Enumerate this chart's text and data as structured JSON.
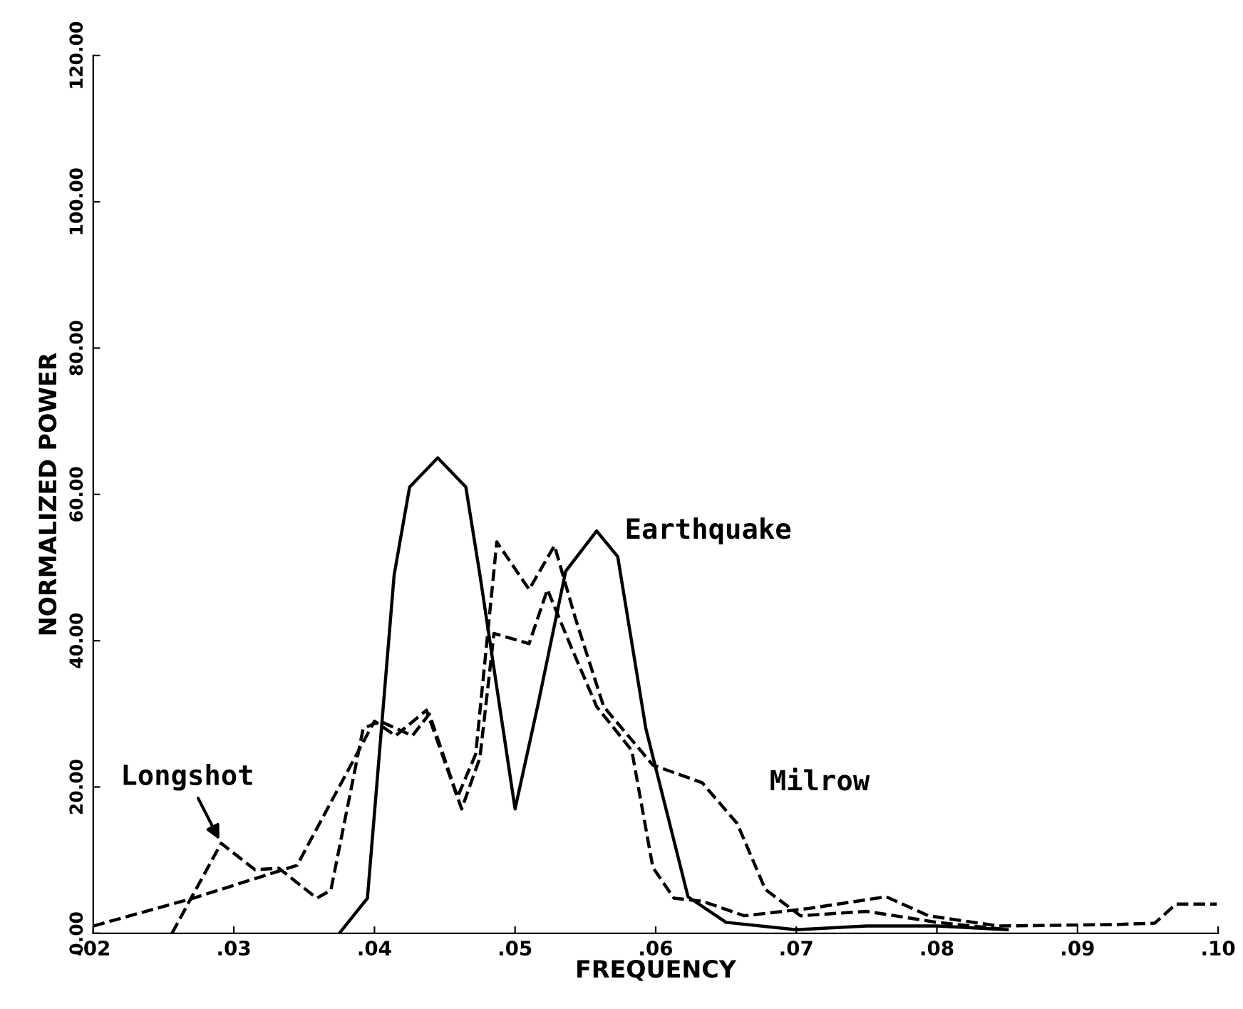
{
  "chart_data": {
    "type": "line",
    "xlabel": "FREQUENCY",
    "ylabel": "NORMALIZED POWER",
    "xlim": [
      0.02,
      0.1
    ],
    "ylim": [
      0,
      120
    ],
    "xticks": [
      {
        "value": 0.02,
        "label": ".02"
      },
      {
        "value": 0.03,
        "label": ".03"
      },
      {
        "value": 0.04,
        "label": ".04"
      },
      {
        "value": 0.05,
        "label": ".05"
      },
      {
        "value": 0.06,
        "label": ".06"
      },
      {
        "value": 0.07,
        "label": ".07"
      },
      {
        "value": 0.08,
        "label": ".08"
      },
      {
        "value": 0.09,
        "label": ".09"
      },
      {
        "value": 0.1,
        "label": ".10"
      }
    ],
    "yticks": [
      {
        "value": 0,
        "label": "0.00"
      },
      {
        "value": 20,
        "label": "20.00"
      },
      {
        "value": 40,
        "label": "40.00"
      },
      {
        "value": 60,
        "label": "60.00"
      },
      {
        "value": 80,
        "label": "80.00"
      },
      {
        "value": 100,
        "label": "100.00"
      },
      {
        "value": 120,
        "label": "120.00"
      }
    ],
    "grid": false,
    "series": [
      {
        "name": "Earthquake",
        "color": "#000000",
        "line_style": "solid",
        "x": [
          0.0375,
          0.0395,
          0.0414,
          0.0425,
          0.0445,
          0.0465,
          0.0475,
          0.05,
          0.0516,
          0.0536,
          0.0558,
          0.0573,
          0.0593,
          0.0623,
          0.065,
          0.07,
          0.075,
          0.08,
          0.085
        ],
        "values": [
          0,
          4.8,
          49,
          61,
          65,
          61,
          49,
          17,
          31,
          49.5,
          55,
          51.5,
          28,
          5,
          1.5,
          0.5,
          1,
          1,
          0.5
        ]
      },
      {
        "name": "Longshot",
        "color": "#000000",
        "line_style": "dashed",
        "x": [
          0.0256,
          0.0271,
          0.0291,
          0.0315,
          0.0332,
          0.0359,
          0.0369,
          0.0392,
          0.0404,
          0.0427,
          0.0439,
          0.0462,
          0.0475,
          0.0485,
          0.051,
          0.0523,
          0.0538,
          0.0558,
          0.0583,
          0.0598,
          0.0613,
          0.0633,
          0.0663,
          0.0709,
          0.0764,
          0.0794,
          0.0844,
          0.0927,
          0.0955,
          0.097,
          0.0999
        ],
        "values": [
          0,
          5.3,
          12.3,
          8.7,
          8.9,
          4.8,
          5.9,
          28,
          29,
          27,
          30,
          17,
          24,
          41,
          39.6,
          47,
          40,
          31,
          25,
          9,
          4.8,
          4.4,
          2.4,
          3.4,
          5,
          2.4,
          1,
          1.2,
          1.4,
          4,
          4
        ]
      },
      {
        "name": "Milrow",
        "color": "#000000",
        "line_style": "dashed",
        "x": [
          0.02,
          0.0271,
          0.0345,
          0.04,
          0.0415,
          0.0437,
          0.0459,
          0.0472,
          0.0487,
          0.051,
          0.0528,
          0.0543,
          0.0563,
          0.0598,
          0.0633,
          0.0658,
          0.0678,
          0.0703,
          0.075,
          0.08,
          0.085
        ],
        "values": [
          1,
          4.8,
          9.3,
          29,
          27,
          30.5,
          18.6,
          24.5,
          53.5,
          47,
          53,
          43,
          31,
          23,
          20.6,
          15,
          6,
          2.4,
          3,
          1.5,
          0.5
        ]
      }
    ]
  }
}
